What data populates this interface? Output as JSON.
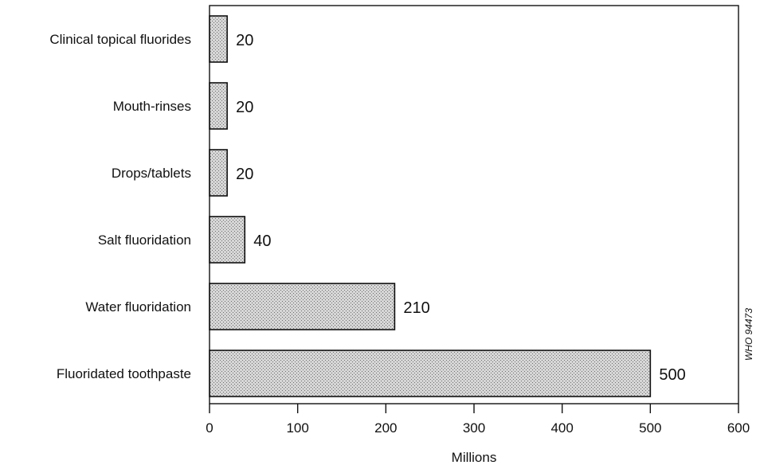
{
  "chart_data": {
    "type": "bar",
    "orientation": "horizontal",
    "categories": [
      "Clinical topical fluorides",
      "Mouth-rinses",
      "Drops/tablets",
      "Salt fluoridation",
      "Water fluoridation",
      "Fluoridated toothpaste"
    ],
    "values": [
      20,
      20,
      20,
      40,
      210,
      500
    ],
    "data_labels": [
      "20",
      "20",
      "20",
      "40",
      "210",
      "500"
    ],
    "title": "",
    "xlabel": "Millions",
    "ylabel": "",
    "xlim": [
      0,
      600
    ],
    "xticks": [
      0,
      100,
      200,
      300,
      400,
      500,
      600
    ],
    "tick_labels": [
      "0",
      "100",
      "200",
      "300",
      "400",
      "500",
      "600"
    ],
    "grid": false,
    "bar_fill": "stippled grey"
  },
  "side_note": "WHO 94473",
  "colors": {
    "bar_fill": "#cfcfcf",
    "bar_stroke": "#111111",
    "text": "#111111",
    "background": "#ffffff"
  }
}
